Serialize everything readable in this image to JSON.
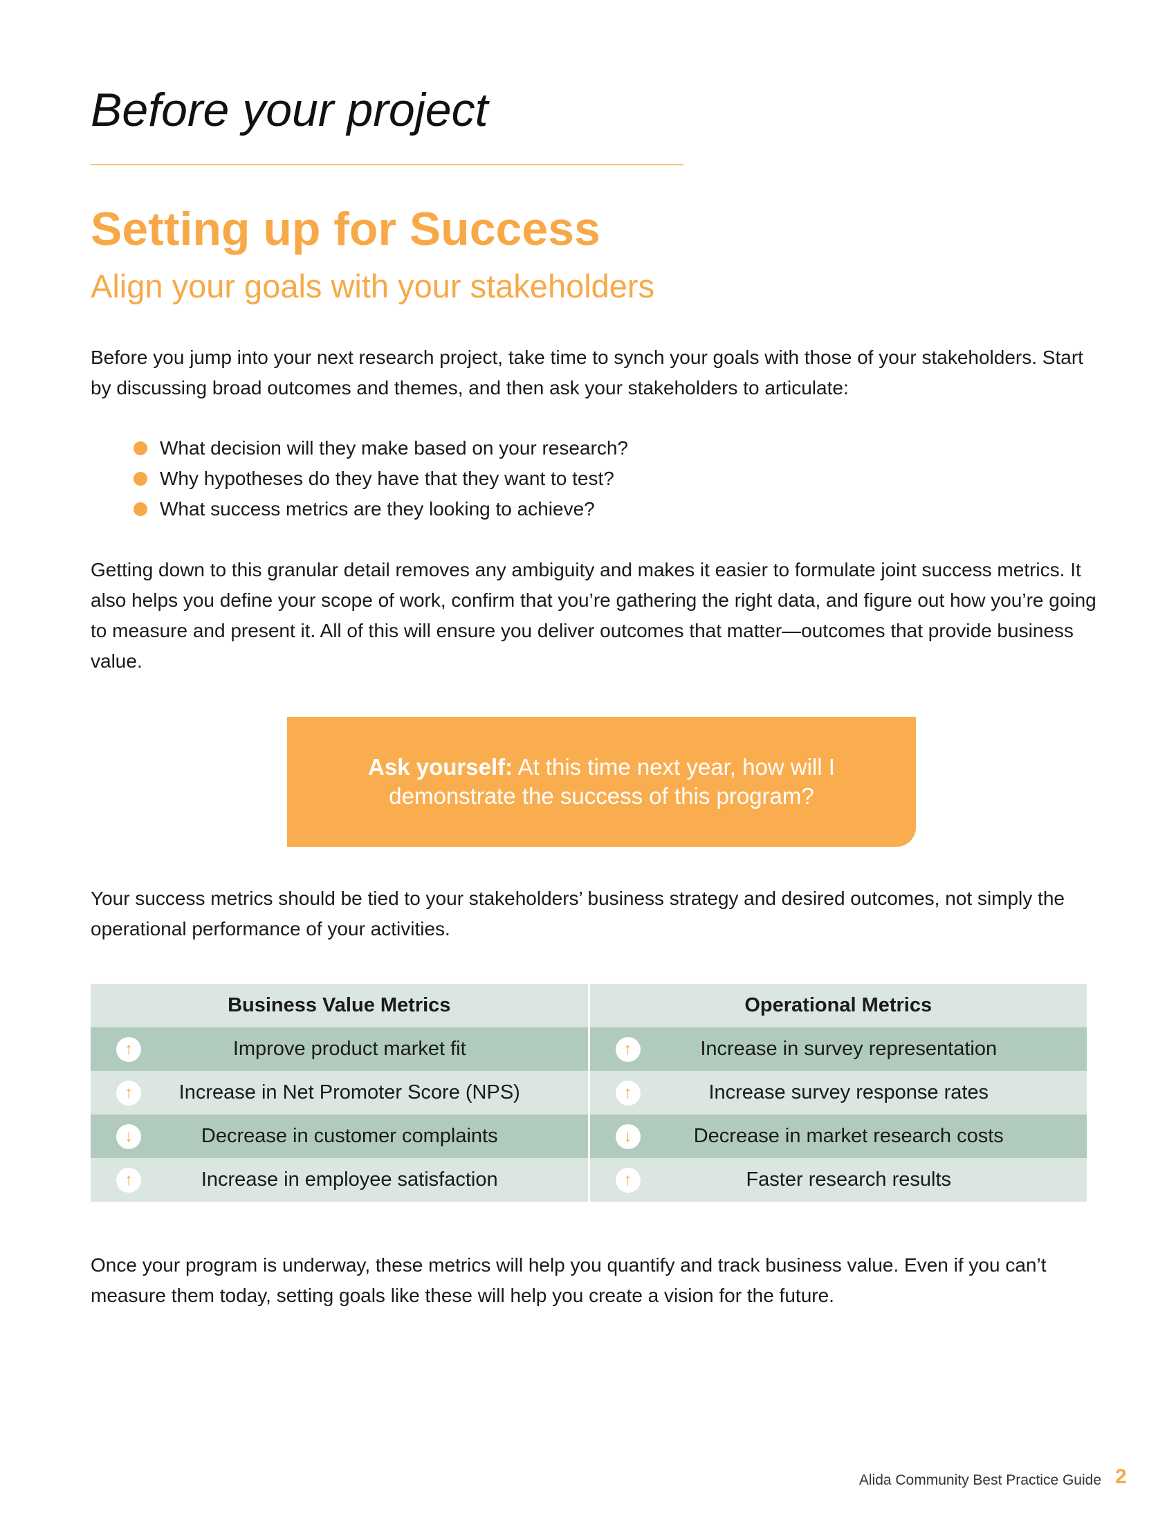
{
  "section_title": "Before your project",
  "headline": "Setting up for Success",
  "subheadline": "Align your goals with your stakeholders",
  "intro": "Before you jump into your next research project, take time to synch your goals with those of your stakeholders. Start by discussing broad outcomes and themes, and then ask your stakeholders to articulate:",
  "bullets": [
    "What decision will they make based on your research?",
    "Why hypotheses do they have that they want to test?",
    "What success metrics are they looking to achieve?"
  ],
  "paragraph2": "Getting down to this granular detail removes any ambiguity and makes it easier to formulate joint success metrics. It also helps you define your scope of work, confirm that you’re gathering the right data, and figure out how you’re going to measure and present it. All of this will ensure you deliver outcomes that matter—outcomes that provide business value.",
  "callout": {
    "lead": "Ask yourself:",
    "text": " At this time next year, how will I demonstrate the success of this program?"
  },
  "paragraph3": "Your success metrics should be tied to your stakeholders’ business strategy and desired outcomes, not simply the operational performance of your activities.",
  "table": {
    "headers": [
      "Business Value Metrics",
      "Operational Metrics"
    ],
    "rows": [
      [
        {
          "icon": "arrow-up",
          "glyph": "↑",
          "text": "Improve product market fit"
        },
        {
          "icon": "arrow-up",
          "glyph": "↑",
          "text": "Increase in survey representation"
        }
      ],
      [
        {
          "icon": "arrow-up",
          "glyph": "↑",
          "text": "Increase in Net Promoter Score (NPS)"
        },
        {
          "icon": "arrow-up",
          "glyph": "↑",
          "text": "Increase survey response rates"
        }
      ],
      [
        {
          "icon": "arrow-down",
          "glyph": "↓",
          "text": "Decrease in customer complaints"
        },
        {
          "icon": "arrow-down",
          "glyph": "↓",
          "text": "Decrease in market research costs"
        }
      ],
      [
        {
          "icon": "arrow-up",
          "glyph": "↑",
          "text": "Increase in employee satisfaction"
        },
        {
          "icon": "arrow-up",
          "glyph": "↑",
          "text": "Faster research results"
        }
      ]
    ]
  },
  "paragraph4": "Once your program is underway, these metrics will help you quantify and track business value. Even if you can’t measure them today, setting goals like these will help you create a vision for the future.",
  "footer": {
    "guide_title": "Alida Community Best Practice Guide",
    "page_number": "2"
  },
  "colors": {
    "accent": "#f7a948",
    "callout_bg": "#f9ad4f",
    "row_dark": "#b0cbbe",
    "row_light": "#dce6e0"
  }
}
